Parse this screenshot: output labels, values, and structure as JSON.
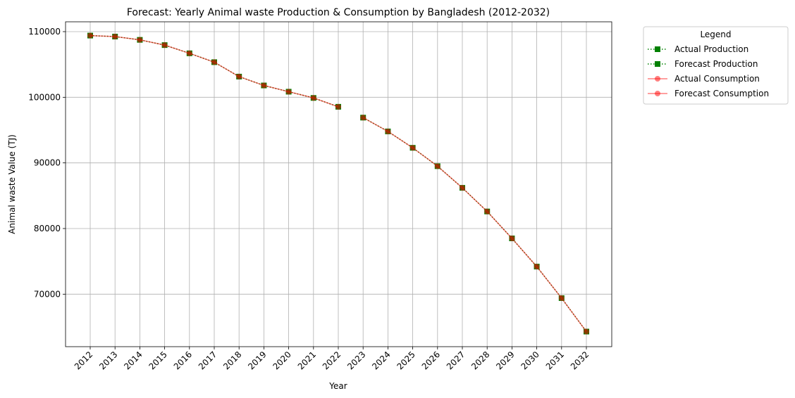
{
  "chart_data": {
    "type": "line",
    "title": "Forecast: Yearly Animal waste Production & Consumption by Bangladesh (2012-2032)",
    "xlabel": "Year",
    "ylabel": "Animal waste Value (TJ)",
    "categories": [
      "2012",
      "2013",
      "2014",
      "2015",
      "2016",
      "2017",
      "2018",
      "2019",
      "2020",
      "2021",
      "2022",
      "2023",
      "2024",
      "2025",
      "2026",
      "2027",
      "2028",
      "2029",
      "2030",
      "2031",
      "2032"
    ],
    "ylim": [
      62000,
      111500
    ],
    "yticks": [
      70000,
      80000,
      90000,
      100000,
      110000
    ],
    "ytick_labels": [
      "70000",
      "80000",
      "90000",
      "100000",
      "110000"
    ],
    "grid": true,
    "legend": {
      "title": "Legend",
      "placement": "outside-top-right"
    },
    "series": [
      {
        "name": "Actual Production",
        "kind": "actual",
        "color": "#008000",
        "line_style": "dotted",
        "marker": "square",
        "x": [
          "2012",
          "2013",
          "2014",
          "2015",
          "2016",
          "2017",
          "2018",
          "2019",
          "2020",
          "2021",
          "2022"
        ],
        "values": [
          109400,
          109250,
          108750,
          107950,
          106700,
          105350,
          103150,
          101800,
          100850,
          99900,
          98550
        ]
      },
      {
        "name": "Forecast Production",
        "kind": "forecast",
        "color": "#008000",
        "line_style": "dotted",
        "marker": "square",
        "x": [
          "2023",
          "2024",
          "2025",
          "2026",
          "2027",
          "2028",
          "2029",
          "2030",
          "2031",
          "2032"
        ],
        "values": [
          96900,
          94800,
          92300,
          89500,
          86200,
          82600,
          78500,
          74200,
          69400,
          64300
        ]
      },
      {
        "name": "Actual Consumption",
        "kind": "actual",
        "color": "#ff0000",
        "line_style": "solid",
        "marker": "circle",
        "x": [
          "2012",
          "2013",
          "2014",
          "2015",
          "2016",
          "2017",
          "2018",
          "2019",
          "2020",
          "2021",
          "2022"
        ],
        "values": [
          109400,
          109250,
          108750,
          107950,
          106700,
          105350,
          103150,
          101800,
          100850,
          99900,
          98550
        ]
      },
      {
        "name": "Forecast Consumption",
        "kind": "forecast",
        "color": "#ff0000",
        "line_style": "solid",
        "marker": "circle",
        "x": [
          "2023",
          "2024",
          "2025",
          "2026",
          "2027",
          "2028",
          "2029",
          "2030",
          "2031",
          "2032"
        ],
        "values": [
          96900,
          94800,
          92300,
          89500,
          86200,
          82600,
          78500,
          74200,
          69400,
          64300
        ]
      }
    ]
  }
}
